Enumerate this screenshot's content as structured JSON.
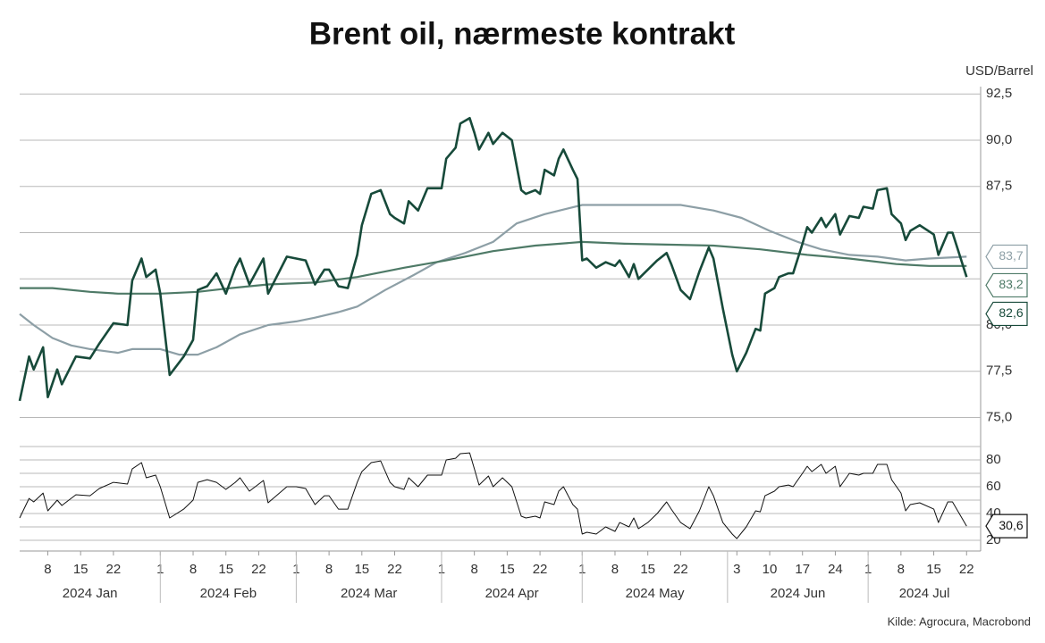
{
  "chart_data": [
    {
      "type": "line",
      "title": "Brent oil, nærmeste kontrakt",
      "y_label": "USD/Barrel",
      "xlim": [
        "2024-01-02",
        "2024-07-25"
      ],
      "ylim": [
        74.3,
        92.9
      ],
      "yticks": [
        {
          "value": 75,
          "label": "75,0"
        },
        {
          "value": 77.5,
          "label": "77,5"
        },
        {
          "value": 80,
          "label": "80,0"
        },
        {
          "value": 87.5,
          "label": "87,5"
        },
        {
          "value": 90,
          "label": "90,0"
        },
        {
          "value": 92.5,
          "label": "92,5"
        }
      ],
      "ygrid": [
        82.5,
        85
      ],
      "x": [
        "2024-01-02",
        "2024-01-04",
        "2024-01-05",
        "2024-01-07",
        "2024-01-08",
        "2024-01-10",
        "2024-01-11",
        "2024-01-14",
        "2024-01-17",
        "2024-01-19",
        "2024-01-22",
        "2024-01-25",
        "2024-01-26",
        "2024-01-28",
        "2024-01-29",
        "2024-01-31",
        "2024-02-01",
        "2024-02-03",
        "2024-02-06",
        "2024-02-08",
        "2024-02-09",
        "2024-02-11",
        "2024-02-13",
        "2024-02-15",
        "2024-02-17",
        "2024-02-18",
        "2024-02-20",
        "2024-02-23",
        "2024-02-24",
        "2024-02-28",
        "2024-03-01",
        "2024-03-03",
        "2024-03-05",
        "2024-03-07",
        "2024-03-08",
        "2024-03-10",
        "2024-03-12",
        "2024-03-14",
        "2024-03-15",
        "2024-03-17",
        "2024-03-19",
        "2024-03-21",
        "2024-03-22",
        "2024-03-24",
        "2024-03-25",
        "2024-03-27",
        "2024-03-29",
        "2024-04-01",
        "2024-04-02",
        "2024-04-04",
        "2024-04-05",
        "2024-04-07",
        "2024-04-08",
        "2024-04-09",
        "2024-04-11",
        "2024-04-12",
        "2024-04-14",
        "2024-04-16",
        "2024-04-18",
        "2024-04-19",
        "2024-04-21",
        "2024-04-22",
        "2024-04-23",
        "2024-04-25",
        "2024-04-26",
        "2024-04-27",
        "2024-04-29",
        "2024-04-30",
        "2024-05-01",
        "2024-05-02",
        "2024-05-04",
        "2024-05-06",
        "2024-05-08",
        "2024-05-09",
        "2024-05-11",
        "2024-05-12",
        "2024-05-13",
        "2024-05-15",
        "2024-05-17",
        "2024-05-19",
        "2024-05-20",
        "2024-05-22",
        "2024-05-24",
        "2024-05-26",
        "2024-05-28",
        "2024-05-29",
        "2024-05-31",
        "2024-06-02",
        "2024-06-03",
        "2024-06-05",
        "2024-06-07",
        "2024-06-08",
        "2024-06-09",
        "2024-06-11",
        "2024-06-12",
        "2024-06-14",
        "2024-06-15",
        "2024-06-17",
        "2024-06-18",
        "2024-06-19",
        "2024-06-21",
        "2024-06-22",
        "2024-06-24",
        "2024-06-25",
        "2024-06-27",
        "2024-06-29",
        "2024-06-30",
        "2024-07-02",
        "2024-07-03",
        "2024-07-05",
        "2024-07-06",
        "2024-07-08",
        "2024-07-09",
        "2024-07-10",
        "2024-07-12",
        "2024-07-15",
        "2024-07-16",
        "2024-07-18",
        "2024-07-19",
        "2024-07-22"
      ],
      "series": [
        {
          "color": "#8d9fa6",
          "end_label": "83,7",
          "x": [
            "2024-01-02",
            "2024-01-05",
            "2024-01-09",
            "2024-01-13",
            "2024-01-17",
            "2024-01-23",
            "2024-01-26",
            "2024-02-01",
            "2024-02-05",
            "2024-02-09",
            "2024-02-13",
            "2024-02-18",
            "2024-02-24",
            "2024-03-01",
            "2024-03-05",
            "2024-03-10",
            "2024-03-14",
            "2024-03-20",
            "2024-03-26",
            "2024-03-31",
            "2024-04-06",
            "2024-04-12",
            "2024-04-17",
            "2024-04-23",
            "2024-05-01",
            "2024-05-10",
            "2024-05-22",
            "2024-05-29",
            "2024-06-04",
            "2024-06-10",
            "2024-06-16",
            "2024-06-21",
            "2024-06-27",
            "2024-07-03",
            "2024-07-09",
            "2024-07-14",
            "2024-07-22"
          ],
          "values": [
            80.6,
            80.0,
            79.3,
            78.9,
            78.7,
            78.5,
            78.7,
            78.7,
            78.4,
            78.4,
            78.8,
            79.5,
            80.0,
            80.2,
            80.4,
            80.7,
            81.0,
            81.9,
            82.7,
            83.4,
            83.9,
            84.5,
            85.5,
            86.0,
            86.5,
            86.5,
            86.5,
            86.2,
            85.8,
            85.1,
            84.5,
            84.1,
            83.8,
            83.7,
            83.5,
            83.6,
            83.7
          ]
        },
        {
          "color": "#4e7a67",
          "end_label": "83,2",
          "x": [
            "2024-01-02",
            "2024-01-09",
            "2024-01-17",
            "2024-01-23",
            "2024-02-01",
            "2024-02-09",
            "2024-02-16",
            "2024-02-24",
            "2024-03-05",
            "2024-03-14",
            "2024-03-24",
            "2024-04-02",
            "2024-04-12",
            "2024-04-21",
            "2024-05-01",
            "2024-05-10",
            "2024-05-29",
            "2024-06-08",
            "2024-06-18",
            "2024-06-27",
            "2024-07-07",
            "2024-07-14",
            "2024-07-22"
          ],
          "values": [
            82.0,
            82.0,
            81.8,
            81.7,
            81.7,
            81.8,
            82.0,
            82.2,
            82.3,
            82.6,
            83.1,
            83.5,
            84.0,
            84.3,
            84.5,
            84.4,
            84.3,
            84.1,
            83.8,
            83.6,
            83.3,
            83.2,
            83.2
          ]
        },
        {
          "color": "#174a3a",
          "width": 2.6,
          "end_label": "82,6",
          "values": [
            75.9,
            78.3,
            77.6,
            78.8,
            76.1,
            77.6,
            76.8,
            78.3,
            78.2,
            79.0,
            80.1,
            80.0,
            82.4,
            83.6,
            82.6,
            83.0,
            81.7,
            77.3,
            78.3,
            79.2,
            81.9,
            82.1,
            82.8,
            81.7,
            83.1,
            83.6,
            82.2,
            83.6,
            81.7,
            83.7,
            83.6,
            83.5,
            82.2,
            83.0,
            83.0,
            82.1,
            82.0,
            83.8,
            85.4,
            87.1,
            87.3,
            86.0,
            85.8,
            85.5,
            86.7,
            86.2,
            87.4,
            87.4,
            89.0,
            89.6,
            90.9,
            91.2,
            90.4,
            89.5,
            90.4,
            89.8,
            90.4,
            90.0,
            87.3,
            87.1,
            87.3,
            87.1,
            88.4,
            88.1,
            89.0,
            89.5,
            88.4,
            87.9,
            83.5,
            83.6,
            83.1,
            83.4,
            83.2,
            83.5,
            82.6,
            83.3,
            82.5,
            83.0,
            83.5,
            83.9,
            83.3,
            81.9,
            81.4,
            82.9,
            84.2,
            83.6,
            80.9,
            78.4,
            77.5,
            78.5,
            79.8,
            79.7,
            81.7,
            82.0,
            82.6,
            82.8,
            82.8,
            84.4,
            85.3,
            85.0,
            85.8,
            85.3,
            86.0,
            84.9,
            85.9,
            85.8,
            86.4,
            86.3,
            87.3,
            87.4,
            86.0,
            85.5,
            84.6,
            85.1,
            85.4,
            84.9,
            83.8,
            85.0,
            85.0,
            82.6
          ]
        }
      ]
    },
    {
      "type": "line",
      "source": "Kilde: Agrocura, Macrobond",
      "xlim": [
        "2024-01-02",
        "2024-07-25"
      ],
      "ylim": [
        12,
        96.7
      ],
      "yticks": [
        20,
        40,
        60,
        80
      ],
      "ygrid": [
        30,
        50,
        70,
        90
      ],
      "xticks": [
        {
          "value": "2024-01-08",
          "label": "8"
        },
        {
          "value": "2024-01-15",
          "label": "15"
        },
        {
          "value": "2024-01-22",
          "label": "22"
        },
        {
          "value": "2024-02-01",
          "label": "1"
        },
        {
          "value": "2024-02-08",
          "label": "8"
        },
        {
          "value": "2024-02-15",
          "label": "15"
        },
        {
          "value": "2024-02-22",
          "label": "22"
        },
        {
          "value": "2024-03-01",
          "label": "1"
        },
        {
          "value": "2024-03-08",
          "label": "8"
        },
        {
          "value": "2024-03-15",
          "label": "15"
        },
        {
          "value": "2024-03-22",
          "label": "22"
        },
        {
          "value": "2024-04-01",
          "label": "1"
        },
        {
          "value": "2024-04-08",
          "label": "8"
        },
        {
          "value": "2024-04-15",
          "label": "15"
        },
        {
          "value": "2024-04-22",
          "label": "22"
        },
        {
          "value": "2024-05-01",
          "label": "1"
        },
        {
          "value": "2024-05-08",
          "label": "8"
        },
        {
          "value": "2024-05-15",
          "label": "15"
        },
        {
          "value": "2024-05-22",
          "label": "22"
        },
        {
          "value": "2024-06-03",
          "label": "3"
        },
        {
          "value": "2024-06-10",
          "label": "10"
        },
        {
          "value": "2024-06-17",
          "label": "17"
        },
        {
          "value": "2024-06-24",
          "label": "24"
        },
        {
          "value": "2024-07-01",
          "label": "1"
        },
        {
          "value": "2024-07-08",
          "label": "8"
        },
        {
          "value": "2024-07-15",
          "label": "15"
        },
        {
          "value": "2024-07-22",
          "label": "22"
        }
      ],
      "months": [
        {
          "value": "2024-01",
          "label": "2024 Jan"
        },
        {
          "value": "2024-02",
          "label": "2024 Feb"
        },
        {
          "value": "2024-03",
          "label": "2024 Mar"
        },
        {
          "value": "2024-04",
          "label": "2024 Apr"
        },
        {
          "value": "2024-05",
          "label": "2024 May"
        },
        {
          "value": "2024-06",
          "label": "2024 Jun"
        },
        {
          "value": "2024-07",
          "label": "2024 Jul"
        }
      ],
      "x": [
        "2024-01-02",
        "2024-01-04",
        "2024-01-05",
        "2024-01-07",
        "2024-01-08",
        "2024-01-10",
        "2024-01-11",
        "2024-01-14",
        "2024-01-17",
        "2024-01-19",
        "2024-01-22",
        "2024-01-25",
        "2024-01-26",
        "2024-01-28",
        "2024-01-29",
        "2024-01-31",
        "2024-02-01",
        "2024-02-03",
        "2024-02-06",
        "2024-02-08",
        "2024-02-09",
        "2024-02-11",
        "2024-02-13",
        "2024-02-15",
        "2024-02-17",
        "2024-02-18",
        "2024-02-20",
        "2024-02-23",
        "2024-02-24",
        "2024-02-28",
        "2024-03-01",
        "2024-03-03",
        "2024-03-05",
        "2024-03-07",
        "2024-03-08",
        "2024-03-10",
        "2024-03-12",
        "2024-03-14",
        "2024-03-15",
        "2024-03-17",
        "2024-03-19",
        "2024-03-21",
        "2024-03-22",
        "2024-03-24",
        "2024-03-25",
        "2024-03-27",
        "2024-03-29",
        "2024-04-01",
        "2024-04-02",
        "2024-04-04",
        "2024-04-05",
        "2024-04-07",
        "2024-04-08",
        "2024-04-09",
        "2024-04-11",
        "2024-04-12",
        "2024-04-14",
        "2024-04-16",
        "2024-04-18",
        "2024-04-19",
        "2024-04-21",
        "2024-04-22",
        "2024-04-23",
        "2024-04-25",
        "2024-04-26",
        "2024-04-27",
        "2024-04-29",
        "2024-04-30",
        "2024-05-01",
        "2024-05-02",
        "2024-05-04",
        "2024-05-06",
        "2024-05-08",
        "2024-05-09",
        "2024-05-11",
        "2024-05-12",
        "2024-05-13",
        "2024-05-15",
        "2024-05-17",
        "2024-05-19",
        "2024-05-20",
        "2024-05-22",
        "2024-05-24",
        "2024-05-26",
        "2024-05-28",
        "2024-05-29",
        "2024-05-31",
        "2024-06-02",
        "2024-06-03",
        "2024-06-05",
        "2024-06-07",
        "2024-06-08",
        "2024-06-09",
        "2024-06-11",
        "2024-06-12",
        "2024-06-14",
        "2024-06-15",
        "2024-06-17",
        "2024-06-18",
        "2024-06-19",
        "2024-06-21",
        "2024-06-22",
        "2024-06-24",
        "2024-06-25",
        "2024-06-27",
        "2024-06-29",
        "2024-06-30",
        "2024-07-02",
        "2024-07-03",
        "2024-07-05",
        "2024-07-06",
        "2024-07-08",
        "2024-07-09",
        "2024-07-10",
        "2024-07-12",
        "2024-07-15",
        "2024-07-16",
        "2024-07-18",
        "2024-07-19",
        "2024-07-22"
      ],
      "series": [
        {
          "color": "#111111",
          "width": 1,
          "end_label": "30,6",
          "values": [
            36.7,
            51.3,
            48.7,
            55.3,
            42.0,
            50.0,
            46.0,
            54.0,
            53.3,
            58.7,
            63.3,
            62.0,
            73.3,
            78.0,
            66.7,
            68.7,
            60.0,
            36.7,
            43.3,
            50.0,
            63.3,
            65.3,
            63.3,
            58.0,
            63.3,
            66.7,
            56.7,
            64.7,
            48.0,
            60.0,
            60.0,
            58.7,
            46.7,
            53.3,
            53.3,
            43.3,
            43.3,
            63.3,
            71.3,
            78.0,
            79.3,
            63.3,
            60.0,
            58.0,
            66.7,
            60.0,
            68.7,
            68.7,
            80.0,
            81.3,
            84.7,
            85.3,
            73.3,
            61.3,
            68.0,
            60.0,
            66.7,
            60.0,
            38.0,
            36.7,
            38.0,
            36.7,
            48.7,
            46.7,
            56.7,
            60.0,
            46.7,
            43.3,
            24.7,
            26.0,
            24.7,
            30.0,
            26.7,
            33.3,
            30.0,
            36.7,
            28.7,
            33.3,
            40.0,
            48.7,
            43.3,
            33.3,
            28.7,
            42.0,
            60.0,
            53.3,
            33.3,
            24.7,
            21.3,
            30.0,
            42.0,
            41.3,
            53.3,
            56.7,
            60.0,
            61.3,
            60.0,
            70.0,
            75.3,
            71.3,
            76.7,
            70.0,
            75.3,
            60.0,
            70.0,
            68.7,
            70.0,
            70.0,
            76.7,
            76.7,
            65.3,
            55.3,
            42.0,
            46.7,
            48.0,
            43.3,
            33.3,
            48.7,
            48.7,
            30.6
          ]
        }
      ]
    }
  ]
}
